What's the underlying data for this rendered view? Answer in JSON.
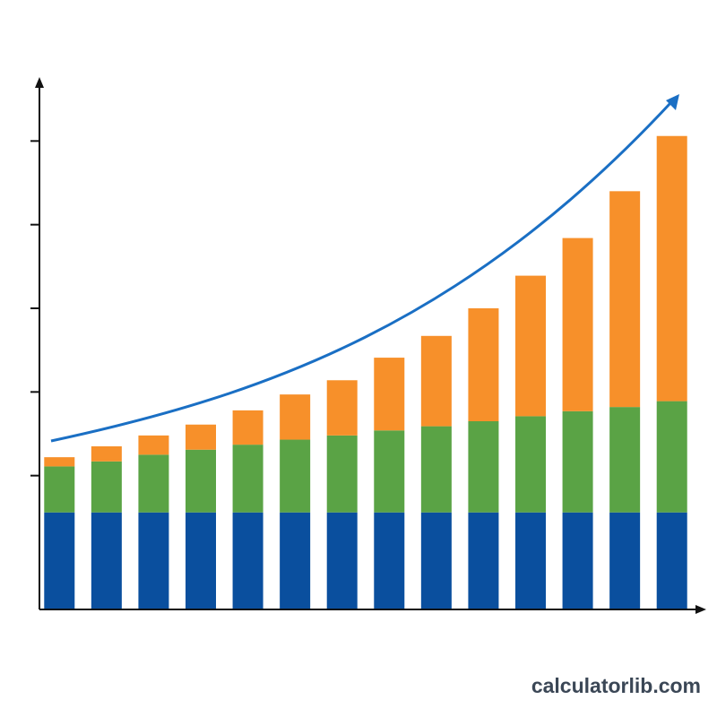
{
  "chart_data": {
    "type": "stacked-bar",
    "categories": [
      null,
      null,
      null,
      null,
      null,
      null,
      null,
      null,
      null,
      null,
      null,
      null,
      null,
      null
    ],
    "series": [
      {
        "color": "#0a4f9e",
        "values": [
          1.16,
          1.16,
          1.16,
          1.16,
          1.16,
          1.16,
          1.16,
          1.16,
          1.16,
          1.16,
          1.16,
          1.16,
          1.16,
          1.16
        ]
      },
      {
        "color": "#5aa345",
        "values": [
          0.55,
          0.61,
          0.69,
          0.75,
          0.81,
          0.87,
          0.92,
          0.98,
          1.03,
          1.09,
          1.15,
          1.21,
          1.26,
          1.33
        ]
      },
      {
        "color": "#f7902a",
        "values": [
          0.11,
          0.18,
          0.23,
          0.3,
          0.41,
          0.54,
          0.66,
          0.87,
          1.08,
          1.35,
          1.68,
          2.07,
          2.58,
          3.17
        ]
      }
    ],
    "ylim": [
      0,
      6.3
    ],
    "yticks": [
      1.6,
      2.6,
      3.6,
      4.6,
      5.6
    ]
  },
  "watermark": "calculatorlib.com"
}
